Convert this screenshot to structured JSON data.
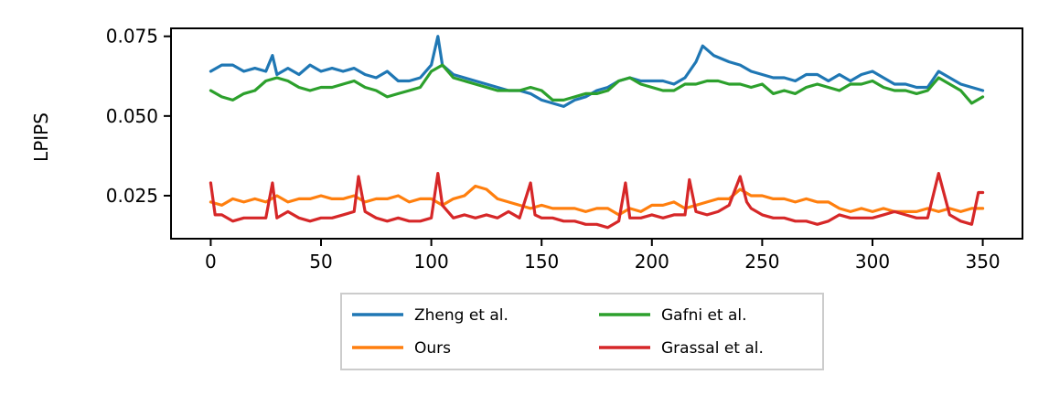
{
  "chart_data": {
    "type": "line",
    "title": "",
    "xlabel": "",
    "ylabel": "LPIPS",
    "xlim": [
      -18,
      368
    ],
    "ylim": [
      0.0115,
      0.0775
    ],
    "x_ticks": [
      0,
      50,
      100,
      150,
      200,
      250,
      300,
      350
    ],
    "x_tick_labels": [
      "0",
      "50",
      "100",
      "150",
      "200",
      "250",
      "300",
      "350"
    ],
    "y_ticks": [
      0.025,
      0.05,
      0.075
    ],
    "y_tick_labels": [
      "0.025",
      "0.050",
      "0.075"
    ],
    "grid": false,
    "legend_position": "below plot, two columns",
    "series": [
      {
        "name": "Zheng et al.",
        "color": "#1f77b4",
        "points": [
          [
            0,
            0.064
          ],
          [
            5,
            0.066
          ],
          [
            10,
            0.066
          ],
          [
            15,
            0.064
          ],
          [
            20,
            0.065
          ],
          [
            25,
            0.064
          ],
          [
            28,
            0.069
          ],
          [
            30,
            0.063
          ],
          [
            35,
            0.065
          ],
          [
            40,
            0.063
          ],
          [
            45,
            0.066
          ],
          [
            50,
            0.064
          ],
          [
            55,
            0.065
          ],
          [
            60,
            0.064
          ],
          [
            65,
            0.065
          ],
          [
            70,
            0.063
          ],
          [
            75,
            0.062
          ],
          [
            80,
            0.064
          ],
          [
            85,
            0.061
          ],
          [
            90,
            0.061
          ],
          [
            95,
            0.062
          ],
          [
            100,
            0.066
          ],
          [
            103,
            0.075
          ],
          [
            105,
            0.066
          ],
          [
            110,
            0.063
          ],
          [
            115,
            0.062
          ],
          [
            120,
            0.061
          ],
          [
            125,
            0.06
          ],
          [
            130,
            0.059
          ],
          [
            135,
            0.058
          ],
          [
            140,
            0.058
          ],
          [
            145,
            0.057
          ],
          [
            150,
            0.055
          ],
          [
            155,
            0.054
          ],
          [
            160,
            0.053
          ],
          [
            165,
            0.055
          ],
          [
            170,
            0.056
          ],
          [
            175,
            0.058
          ],
          [
            180,
            0.059
          ],
          [
            185,
            0.061
          ],
          [
            190,
            0.062
          ],
          [
            195,
            0.061
          ],
          [
            200,
            0.061
          ],
          [
            205,
            0.061
          ],
          [
            210,
            0.06
          ],
          [
            215,
            0.062
          ],
          [
            220,
            0.067
          ],
          [
            223,
            0.072
          ],
          [
            228,
            0.069
          ],
          [
            235,
            0.067
          ],
          [
            240,
            0.066
          ],
          [
            245,
            0.064
          ],
          [
            250,
            0.063
          ],
          [
            255,
            0.062
          ],
          [
            260,
            0.062
          ],
          [
            265,
            0.061
          ],
          [
            270,
            0.063
          ],
          [
            275,
            0.063
          ],
          [
            280,
            0.061
          ],
          [
            285,
            0.063
          ],
          [
            290,
            0.061
          ],
          [
            295,
            0.063
          ],
          [
            300,
            0.064
          ],
          [
            305,
            0.062
          ],
          [
            310,
            0.06
          ],
          [
            315,
            0.06
          ],
          [
            320,
            0.059
          ],
          [
            325,
            0.059
          ],
          [
            330,
            0.064
          ],
          [
            335,
            0.062
          ],
          [
            340,
            0.06
          ],
          [
            345,
            0.059
          ],
          [
            350,
            0.058
          ]
        ]
      },
      {
        "name": "Ours",
        "color": "#ff7f0e",
        "points": [
          [
            0,
            0.023
          ],
          [
            5,
            0.022
          ],
          [
            10,
            0.024
          ],
          [
            15,
            0.023
          ],
          [
            20,
            0.024
          ],
          [
            25,
            0.023
          ],
          [
            30,
            0.025
          ],
          [
            35,
            0.023
          ],
          [
            40,
            0.024
          ],
          [
            45,
            0.024
          ],
          [
            50,
            0.025
          ],
          [
            55,
            0.024
          ],
          [
            60,
            0.024
          ],
          [
            65,
            0.025
          ],
          [
            70,
            0.023
          ],
          [
            75,
            0.024
          ],
          [
            80,
            0.024
          ],
          [
            85,
            0.025
          ],
          [
            90,
            0.023
          ],
          [
            95,
            0.024
          ],
          [
            100,
            0.024
          ],
          [
            105,
            0.022
          ],
          [
            110,
            0.024
          ],
          [
            115,
            0.025
          ],
          [
            120,
            0.028
          ],
          [
            125,
            0.027
          ],
          [
            130,
            0.024
          ],
          [
            135,
            0.023
          ],
          [
            140,
            0.022
          ],
          [
            145,
            0.021
          ],
          [
            150,
            0.022
          ],
          [
            155,
            0.021
          ],
          [
            160,
            0.021
          ],
          [
            165,
            0.021
          ],
          [
            170,
            0.02
          ],
          [
            175,
            0.021
          ],
          [
            180,
            0.021
          ],
          [
            185,
            0.019
          ],
          [
            190,
            0.021
          ],
          [
            195,
            0.02
          ],
          [
            200,
            0.022
          ],
          [
            205,
            0.022
          ],
          [
            210,
            0.023
          ],
          [
            215,
            0.021
          ],
          [
            220,
            0.022
          ],
          [
            225,
            0.023
          ],
          [
            230,
            0.024
          ],
          [
            235,
            0.024
          ],
          [
            240,
            0.027
          ],
          [
            245,
            0.025
          ],
          [
            250,
            0.025
          ],
          [
            255,
            0.024
          ],
          [
            260,
            0.024
          ],
          [
            265,
            0.023
          ],
          [
            270,
            0.024
          ],
          [
            275,
            0.023
          ],
          [
            280,
            0.023
          ],
          [
            285,
            0.021
          ],
          [
            290,
            0.02
          ],
          [
            295,
            0.021
          ],
          [
            300,
            0.02
          ],
          [
            305,
            0.021
          ],
          [
            310,
            0.02
          ],
          [
            315,
            0.02
          ],
          [
            320,
            0.02
          ],
          [
            325,
            0.021
          ],
          [
            330,
            0.02
          ],
          [
            335,
            0.021
          ],
          [
            340,
            0.02
          ],
          [
            345,
            0.021
          ],
          [
            350,
            0.021
          ]
        ]
      },
      {
        "name": "Gafni et al.",
        "color": "#2ca02c",
        "points": [
          [
            0,
            0.058
          ],
          [
            5,
            0.056
          ],
          [
            10,
            0.055
          ],
          [
            15,
            0.057
          ],
          [
            20,
            0.058
          ],
          [
            25,
            0.061
          ],
          [
            30,
            0.062
          ],
          [
            35,
            0.061
          ],
          [
            40,
            0.059
          ],
          [
            45,
            0.058
          ],
          [
            50,
            0.059
          ],
          [
            55,
            0.059
          ],
          [
            60,
            0.06
          ],
          [
            65,
            0.061
          ],
          [
            70,
            0.059
          ],
          [
            75,
            0.058
          ],
          [
            80,
            0.056
          ],
          [
            85,
            0.057
          ],
          [
            90,
            0.058
          ],
          [
            95,
            0.059
          ],
          [
            100,
            0.064
          ],
          [
            105,
            0.066
          ],
          [
            110,
            0.062
          ],
          [
            115,
            0.061
          ],
          [
            120,
            0.06
          ],
          [
            125,
            0.059
          ],
          [
            130,
            0.058
          ],
          [
            135,
            0.058
          ],
          [
            140,
            0.058
          ],
          [
            145,
            0.059
          ],
          [
            150,
            0.058
          ],
          [
            155,
            0.055
          ],
          [
            160,
            0.055
          ],
          [
            165,
            0.056
          ],
          [
            170,
            0.057
          ],
          [
            175,
            0.057
          ],
          [
            180,
            0.058
          ],
          [
            185,
            0.061
          ],
          [
            190,
            0.062
          ],
          [
            195,
            0.06
          ],
          [
            200,
            0.059
          ],
          [
            205,
            0.058
          ],
          [
            210,
            0.058
          ],
          [
            215,
            0.06
          ],
          [
            220,
            0.06
          ],
          [
            225,
            0.061
          ],
          [
            230,
            0.061
          ],
          [
            235,
            0.06
          ],
          [
            240,
            0.06
          ],
          [
            245,
            0.059
          ],
          [
            250,
            0.06
          ],
          [
            255,
            0.057
          ],
          [
            260,
            0.058
          ],
          [
            265,
            0.057
          ],
          [
            270,
            0.059
          ],
          [
            275,
            0.06
          ],
          [
            280,
            0.059
          ],
          [
            285,
            0.058
          ],
          [
            290,
            0.06
          ],
          [
            295,
            0.06
          ],
          [
            300,
            0.061
          ],
          [
            305,
            0.059
          ],
          [
            310,
            0.058
          ],
          [
            315,
            0.058
          ],
          [
            320,
            0.057
          ],
          [
            325,
            0.058
          ],
          [
            330,
            0.062
          ],
          [
            335,
            0.06
          ],
          [
            340,
            0.058
          ],
          [
            345,
            0.054
          ],
          [
            350,
            0.056
          ]
        ]
      },
      {
        "name": "Grassal et al.",
        "color": "#d62728",
        "points": [
          [
            0,
            0.029
          ],
          [
            2,
            0.019
          ],
          [
            5,
            0.019
          ],
          [
            10,
            0.017
          ],
          [
            15,
            0.018
          ],
          [
            20,
            0.018
          ],
          [
            25,
            0.018
          ],
          [
            28,
            0.029
          ],
          [
            30,
            0.018
          ],
          [
            35,
            0.02
          ],
          [
            40,
            0.018
          ],
          [
            45,
            0.017
          ],
          [
            50,
            0.018
          ],
          [
            55,
            0.018
          ],
          [
            60,
            0.019
          ],
          [
            65,
            0.02
          ],
          [
            67,
            0.031
          ],
          [
            70,
            0.02
          ],
          [
            75,
            0.018
          ],
          [
            80,
            0.017
          ],
          [
            85,
            0.018
          ],
          [
            90,
            0.017
          ],
          [
            95,
            0.017
          ],
          [
            100,
            0.018
          ],
          [
            103,
            0.032
          ],
          [
            105,
            0.022
          ],
          [
            110,
            0.018
          ],
          [
            115,
            0.019
          ],
          [
            120,
            0.018
          ],
          [
            125,
            0.019
          ],
          [
            130,
            0.018
          ],
          [
            135,
            0.02
          ],
          [
            140,
            0.018
          ],
          [
            145,
            0.029
          ],
          [
            147,
            0.019
          ],
          [
            150,
            0.018
          ],
          [
            155,
            0.018
          ],
          [
            160,
            0.017
          ],
          [
            165,
            0.017
          ],
          [
            170,
            0.016
          ],
          [
            175,
            0.016
          ],
          [
            180,
            0.015
          ],
          [
            185,
            0.017
          ],
          [
            188,
            0.029
          ],
          [
            190,
            0.018
          ],
          [
            195,
            0.018
          ],
          [
            200,
            0.019
          ],
          [
            205,
            0.018
          ],
          [
            210,
            0.019
          ],
          [
            215,
            0.019
          ],
          [
            217,
            0.03
          ],
          [
            220,
            0.02
          ],
          [
            225,
            0.019
          ],
          [
            230,
            0.02
          ],
          [
            235,
            0.022
          ],
          [
            240,
            0.031
          ],
          [
            243,
            0.023
          ],
          [
            245,
            0.021
          ],
          [
            250,
            0.019
          ],
          [
            255,
            0.018
          ],
          [
            260,
            0.018
          ],
          [
            265,
            0.017
          ],
          [
            270,
            0.017
          ],
          [
            275,
            0.016
          ],
          [
            280,
            0.017
          ],
          [
            285,
            0.019
          ],
          [
            290,
            0.018
          ],
          [
            295,
            0.018
          ],
          [
            300,
            0.018
          ],
          [
            305,
            0.019
          ],
          [
            310,
            0.02
          ],
          [
            315,
            0.019
          ],
          [
            320,
            0.018
          ],
          [
            325,
            0.018
          ],
          [
            330,
            0.032
          ],
          [
            335,
            0.019
          ],
          [
            340,
            0.017
          ],
          [
            345,
            0.016
          ],
          [
            348,
            0.026
          ],
          [
            350,
            0.026
          ]
        ]
      }
    ]
  }
}
